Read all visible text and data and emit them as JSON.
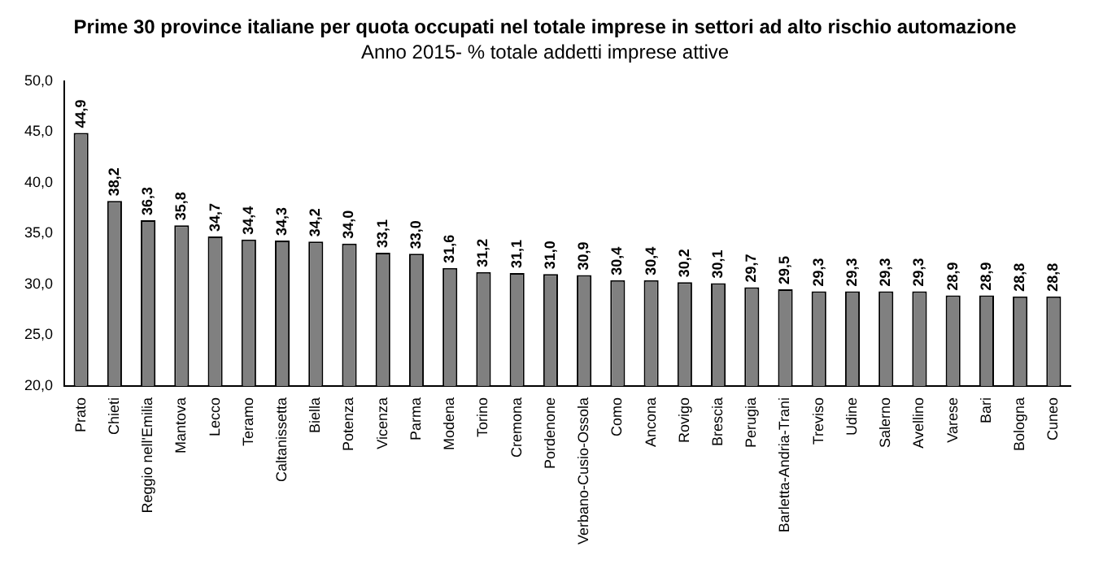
{
  "chart_data": {
    "type": "bar",
    "title": "Prime 30 province italiane per quota occupati nel totale imprese in settori ad alto rischio automazione",
    "subtitle": "Anno 2015- % totale addetti imprese attive",
    "categories": [
      "Prato",
      "Chieti",
      "Reggio nell'Emilia",
      "Mantova",
      "Lecco",
      "Teramo",
      "Caltanissetta",
      "Biella",
      "Potenza",
      "Vicenza",
      "Parma",
      "Modena",
      "Torino",
      "Cremona",
      "Pordenone",
      "Verbano-Cusio-Ossola",
      "Como",
      "Ancona",
      "Rovigo",
      "Brescia",
      "Perugia",
      "Barletta-Andria-Trani",
      "Treviso",
      "Udine",
      "Salerno",
      "Avellino",
      "Varese",
      "Bari",
      "Bologna",
      "Cuneo"
    ],
    "values": [
      44.9,
      38.2,
      36.3,
      35.8,
      34.7,
      34.4,
      34.3,
      34.2,
      34.0,
      33.1,
      33.0,
      31.6,
      31.2,
      31.1,
      31.0,
      30.9,
      30.4,
      30.4,
      30.2,
      30.1,
      29.7,
      29.5,
      29.3,
      29.3,
      29.3,
      29.3,
      28.9,
      28.9,
      28.8,
      28.8
    ],
    "value_labels": [
      "44,9",
      "38,2",
      "36,3",
      "35,8",
      "34,7",
      "34,4",
      "34,3",
      "34,2",
      "34,0",
      "33,1",
      "33,0",
      "31,6",
      "31,2",
      "31,1",
      "31,0",
      "30,9",
      "30,4",
      "30,4",
      "30,2",
      "30,1",
      "29,7",
      "29,5",
      "29,3",
      "29,3",
      "29,3",
      "29,3",
      "28,9",
      "28,9",
      "28,8",
      "28,8"
    ],
    "color": "#808080",
    "ylim": [
      20,
      50
    ],
    "yticks": [
      {
        "value": 20,
        "label": "20,0"
      },
      {
        "value": 25,
        "label": "25,0"
      },
      {
        "value": 30,
        "label": "30,0"
      },
      {
        "value": 35,
        "label": "35,0"
      },
      {
        "value": 40,
        "label": "40,0"
      },
      {
        "value": 45,
        "label": "45,0"
      },
      {
        "value": 50,
        "label": "50,0"
      }
    ],
    "grid": false,
    "legend": false
  }
}
